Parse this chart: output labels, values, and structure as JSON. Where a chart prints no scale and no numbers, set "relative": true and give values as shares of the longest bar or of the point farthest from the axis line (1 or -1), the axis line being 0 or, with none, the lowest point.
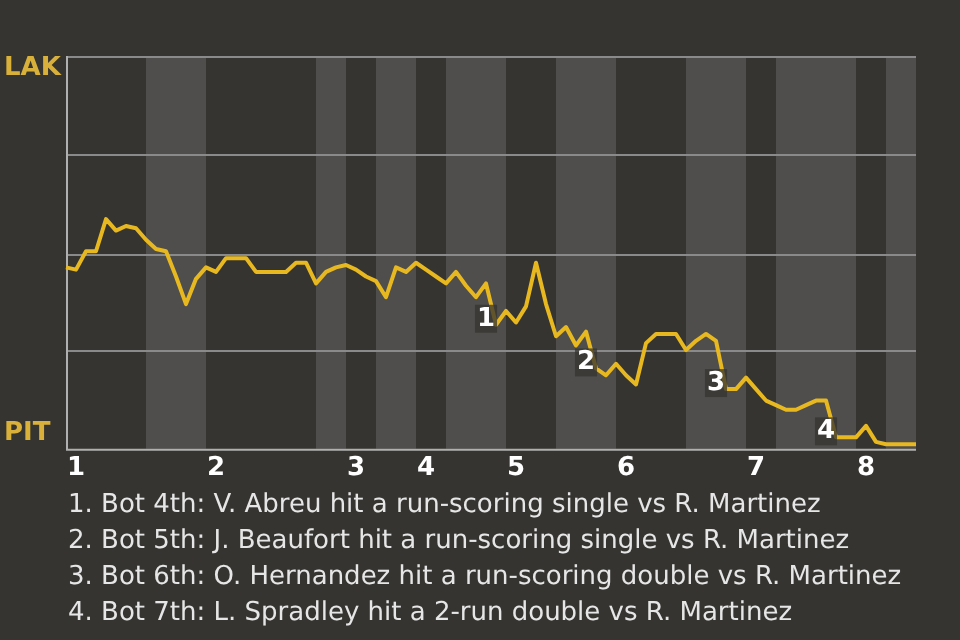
{
  "chart_data": {
    "type": "line",
    "relative": true,
    "categories": [
      null,
      "1",
      null,
      null,
      null,
      null,
      null,
      null,
      null,
      null,
      null,
      null,
      null,
      null,
      null,
      "2",
      null,
      null,
      null,
      null,
      null,
      null,
      null,
      null,
      null,
      null,
      null,
      null,
      null,
      "3",
      null,
      null,
      null,
      null,
      null,
      null,
      "4",
      null,
      null,
      null,
      null,
      null,
      null,
      null,
      null,
      "5",
      null,
      null,
      null,
      null,
      null,
      null,
      null,
      null,
      null,
      null,
      "6",
      null,
      null,
      null,
      null,
      null,
      null,
      null,
      null,
      null,
      null,
      null,
      null,
      "7",
      null,
      null,
      null,
      null,
      null,
      null,
      null,
      null,
      null,
      null,
      "8",
      null,
      null,
      null,
      null,
      null
    ],
    "series": [
      {
        "color": "#e8b820",
        "values": [
          0.79,
          0.78,
          0.86,
          0.86,
          1,
          0.95,
          0.97,
          0.96,
          0.91,
          0.87,
          0.86,
          0.75,
          0.63,
          0.74,
          0.79,
          0.77,
          0.83,
          0.83,
          0.83,
          0.77,
          0.77,
          0.77,
          0.77,
          0.81,
          0.81,
          0.72,
          0.77,
          0.79,
          0.8,
          0.78,
          0.75,
          0.73,
          0.66,
          0.79,
          0.77,
          0.81,
          0.78,
          0.75,
          0.72,
          0.77,
          0.71,
          0.66,
          0.72,
          0.54,
          0.6,
          0.55,
          0.62,
          0.81,
          0.63,
          0.49,
          0.53,
          0.45,
          0.51,
          0.35,
          0.32,
          0.37,
          0.32,
          0.28,
          0.46,
          0.5,
          0.5,
          0.5,
          0.43,
          0.47,
          0.5,
          0.47,
          0.26,
          0.26,
          0.31,
          0.26,
          0.21,
          0.19,
          0.17,
          0.17,
          0.19,
          0.21,
          0.21,
          0.05,
          0.05,
          0.05,
          0.1,
          0.03,
          0.02,
          0.02,
          0.02,
          0.02
        ]
      }
    ],
    "ref_lines": [
      {
        "axis": "y",
        "value": 0.43,
        "color": "#8a8a8a"
      },
      {
        "axis": "y",
        "value": 0.85,
        "color": "#8a8a8a"
      },
      {
        "axis": "y",
        "value": 1.28,
        "color": "#8a8a8a"
      },
      {
        "axis": "y",
        "value": 1.71,
        "color": "#8a8a8a"
      }
    ],
    "marker": "none",
    "annotations": [
      "LAK",
      "PIT",
      {
        "text": "1",
        "y": 0.54
      },
      {
        "text": "2",
        "y": 0.35
      },
      {
        "text": "3",
        "y": 0.26
      },
      {
        "text": "4",
        "y": 0.05
      },
      "1. Bot 4th: V. Abreu hit a run-scoring single vs R. Martinez",
      "2. Bot 5th: J. Beaufort hit a run-scoring single vs R. Martinez",
      "3. Bot 6th: O. Hernandez hit a run-scoring double vs R. Martinez",
      "4. Bot 7th: L. Spradley hit a 2-run double vs R. Martinez"
    ]
  }
}
